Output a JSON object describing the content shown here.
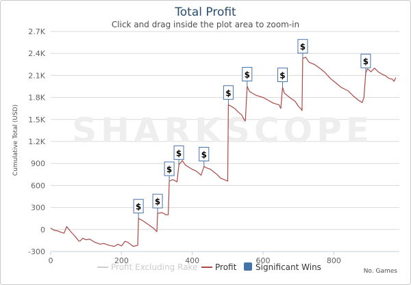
{
  "chart_data": {
    "type": "line",
    "title": "Total Profit",
    "subtitle": "Click and drag inside the plot area to zoom-in",
    "ylabel": "Cumulative Total (USD)",
    "xlabel": "No. Games",
    "watermark": "SHARKSCOPE",
    "xlim": [
      0,
      985
    ],
    "ylim": [
      -300,
      2700
    ],
    "x_ticks": [
      0,
      200,
      400,
      600,
      800
    ],
    "y_ticks": [
      -300,
      0,
      300,
      600,
      900,
      1200,
      1500,
      1800,
      2100,
      2400,
      2700
    ],
    "y_tick_labels": [
      "-300",
      "0",
      "300",
      "600",
      "900",
      "1.2K",
      "1.5K",
      "1.8K",
      "2.1K",
      "2.4K",
      "2.7K"
    ],
    "grid": true,
    "legend_position": "bottom-center",
    "series": [
      {
        "name": "Profit Excluding Rake",
        "visible": false,
        "color": "#cccccc",
        "points": []
      },
      {
        "name": "Profit",
        "visible": true,
        "color": "#aa4643",
        "points": [
          [
            0,
            20
          ],
          [
            10,
            -10
          ],
          [
            20,
            -20
          ],
          [
            30,
            -40
          ],
          [
            38,
            -50
          ],
          [
            45,
            40
          ],
          [
            55,
            -20
          ],
          [
            70,
            -100
          ],
          [
            80,
            -160
          ],
          [
            85,
            -150
          ],
          [
            90,
            -120
          ],
          [
            100,
            -140
          ],
          [
            110,
            -130
          ],
          [
            125,
            -175
          ],
          [
            140,
            -200
          ],
          [
            150,
            -190
          ],
          [
            165,
            -215
          ],
          [
            180,
            -230
          ],
          [
            190,
            -200
          ],
          [
            200,
            -225
          ],
          [
            210,
            -160
          ],
          [
            218,
            -175
          ],
          [
            225,
            -200
          ],
          [
            233,
            -230
          ],
          [
            246,
            -215
          ],
          [
            248,
            150
          ],
          [
            260,
            120
          ],
          [
            275,
            70
          ],
          [
            290,
            20
          ],
          [
            300,
            -30
          ],
          [
            302,
            220
          ],
          [
            315,
            230
          ],
          [
            326,
            200
          ],
          [
            332,
            200
          ],
          [
            335,
            660
          ],
          [
            345,
            680
          ],
          [
            357,
            650
          ],
          [
            362,
            880
          ],
          [
            372,
            940
          ],
          [
            380,
            880
          ],
          [
            390,
            850
          ],
          [
            400,
            820
          ],
          [
            410,
            800
          ],
          [
            420,
            760
          ],
          [
            425,
            740
          ],
          [
            433,
            860
          ],
          [
            440,
            840
          ],
          [
            452,
            820
          ],
          [
            462,
            780
          ],
          [
            470,
            750
          ],
          [
            480,
            700
          ],
          [
            490,
            680
          ],
          [
            500,
            660
          ],
          [
            502,
            1700
          ],
          [
            510,
            1680
          ],
          [
            520,
            1650
          ],
          [
            530,
            1600
          ],
          [
            540,
            1560
          ],
          [
            546,
            1500
          ],
          [
            550,
            1480
          ],
          [
            555,
            1950
          ],
          [
            562,
            1880
          ],
          [
            580,
            1830
          ],
          [
            600,
            1800
          ],
          [
            615,
            1760
          ],
          [
            630,
            1720
          ],
          [
            645,
            1700
          ],
          [
            650,
            1650
          ],
          [
            655,
            1940
          ],
          [
            660,
            1860
          ],
          [
            675,
            1800
          ],
          [
            690,
            1750
          ],
          [
            700,
            1680
          ],
          [
            708,
            1640
          ],
          [
            710,
            1620
          ],
          [
            712,
            2330
          ],
          [
            720,
            2350
          ],
          [
            730,
            2280
          ],
          [
            745,
            2250
          ],
          [
            760,
            2200
          ],
          [
            775,
            2140
          ],
          [
            790,
            2060
          ],
          [
            805,
            2000
          ],
          [
            820,
            1940
          ],
          [
            840,
            1890
          ],
          [
            855,
            1820
          ],
          [
            870,
            1760
          ],
          [
            880,
            1730
          ],
          [
            885,
            1800
          ],
          [
            890,
            2130
          ],
          [
            895,
            2190
          ],
          [
            905,
            2150
          ],
          [
            915,
            2200
          ],
          [
            925,
            2150
          ],
          [
            935,
            2120
          ],
          [
            945,
            2100
          ],
          [
            955,
            2060
          ],
          [
            965,
            2050
          ],
          [
            970,
            2020
          ],
          [
            975,
            2070
          ]
        ]
      }
    ],
    "significant_wins": {
      "name": "Significant Wins",
      "color": "#4572a7",
      "symbol": "$",
      "points": [
        [
          248,
          150
        ],
        [
          302,
          220
        ],
        [
          335,
          660
        ],
        [
          362,
          880
        ],
        [
          433,
          860
        ],
        [
          502,
          1700
        ],
        [
          555,
          1950
        ],
        [
          655,
          1940
        ],
        [
          712,
          2330
        ],
        [
          890,
          2130
        ]
      ]
    }
  }
}
